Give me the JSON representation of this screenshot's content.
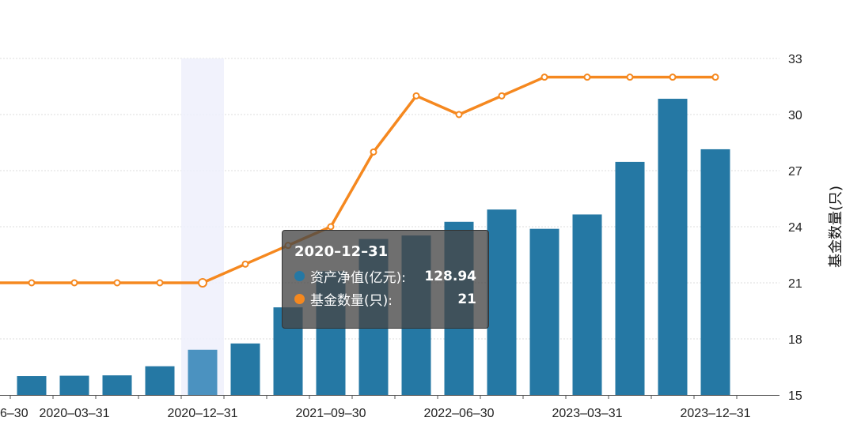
{
  "chart_data": {
    "type": "bar-line",
    "categories": [
      "2019-12-31",
      "2020-03-31",
      "2020-06-30",
      "2020-09-30",
      "2020-12-31",
      "2021-03-31",
      "2021-06-30",
      "2021-09-30",
      "2021-12-31",
      "2022-03-31",
      "2022-06-30",
      "2022-09-30",
      "2022-12-31",
      "2023-03-31",
      "2023-06-30",
      "2023-09-30",
      "2023-12-31"
    ],
    "x_tick_labels": [
      {
        "category": "2019-09-30",
        "label": "6–30"
      },
      {
        "category": "2020-03-31",
        "label": "2020–03–31"
      },
      {
        "category": "2020-12-31",
        "label": "2020–12–31"
      },
      {
        "category": "2021-09-30",
        "label": "2021–09–30"
      },
      {
        "category": "2022-06-30",
        "label": "2022–06–30"
      },
      {
        "category": "2023-03-31",
        "label": "2023–03–31"
      },
      {
        "category": "2023-12-31",
        "label": "2023–12–31"
      }
    ],
    "series": [
      {
        "name": "资产净值(亿元)",
        "type": "bar",
        "axis": "left",
        "color": "#2578a4",
        "values": [
          54,
          55,
          56,
          82,
          129,
          147,
          250,
          353,
          445,
          455,
          494,
          529,
          474,
          515,
          665,
          845,
          701
        ]
      },
      {
        "name": "基金数量(只)",
        "type": "line",
        "axis": "right",
        "color": "#f5881f",
        "values": [
          21,
          21,
          21,
          21,
          21,
          22,
          23,
          24,
          28,
          31,
          30,
          31,
          32,
          32,
          32,
          32,
          32
        ]
      }
    ],
    "left_axis_range": [
      0,
      960
    ],
    "right_axis": {
      "label": "基金数量(只)",
      "range": [
        15,
        33
      ],
      "ticks": [
        15,
        18,
        21,
        24,
        27,
        30,
        33
      ]
    },
    "grid": true,
    "highlighted_category": "2020-12-31",
    "tooltip": {
      "title": "2020–12–31",
      "rows": [
        {
          "name": "资产净值(亿元):",
          "value": "128.94",
          "color": "#2578a4"
        },
        {
          "name": "基金数量(只):",
          "value": "21",
          "color": "#f5881f"
        }
      ]
    }
  }
}
